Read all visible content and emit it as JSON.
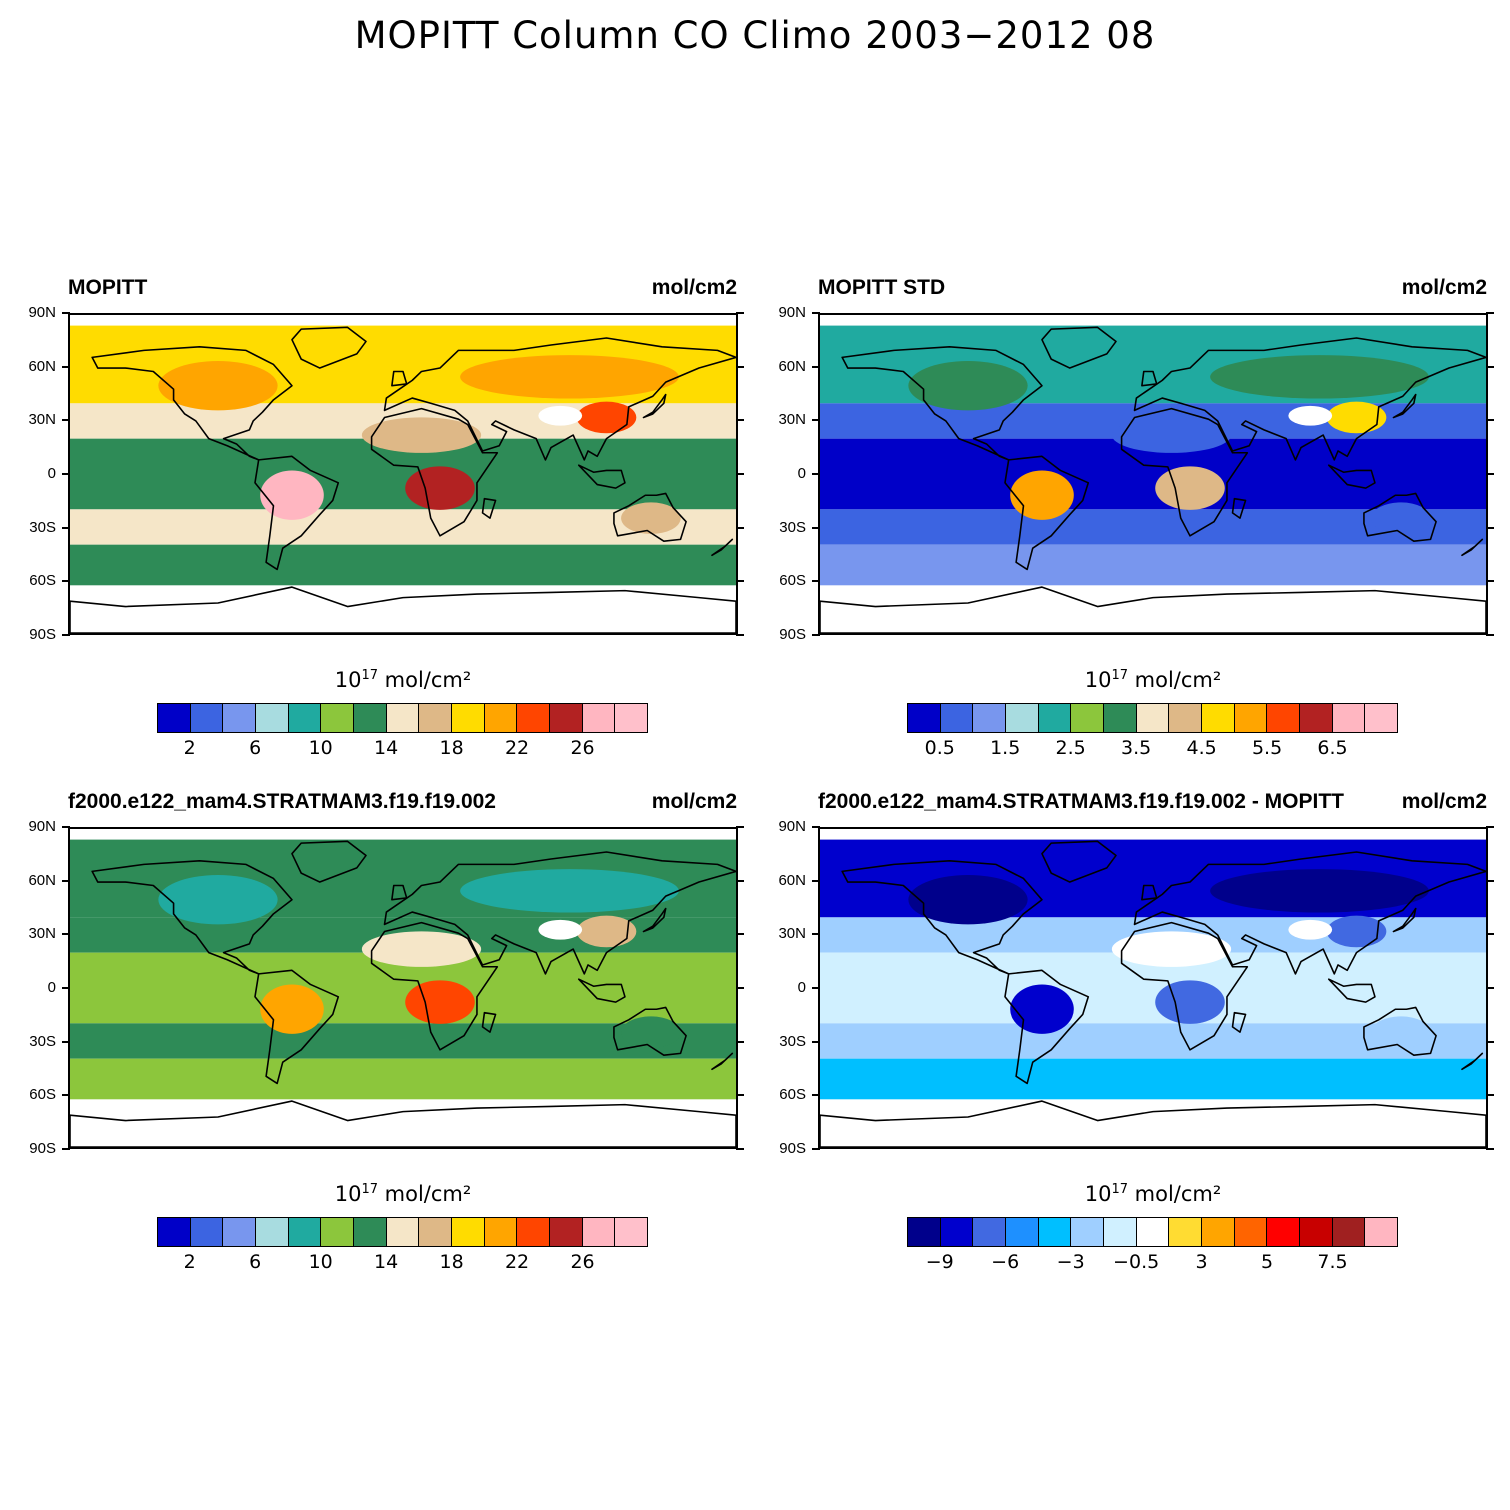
{
  "title": "MOPITT Column CO Climo 2003−2012 08",
  "lat_labels": [
    "90N",
    "60N",
    "30N",
    "0",
    "30S",
    "60S",
    "90S"
  ],
  "palettes": {
    "main": [
      "#0000c8",
      "#3c64e1",
      "#7896ee",
      "#a8dce0",
      "#20aaa0",
      "#8cc63c",
      "#2e8b57",
      "#f5e6c8",
      "#deb887",
      "#ffdc00",
      "#ffa500",
      "#ff4500",
      "#b22222",
      "#ffb6c1",
      "#ffc0cb"
    ],
    "diff": [
      "#00008b",
      "#0000cd",
      "#4169e1",
      "#1e90ff",
      "#00bfff",
      "#9fcfff",
      "#d0f0ff",
      "#ffffff",
      "#ffdc32",
      "#ffa500",
      "#ff6400",
      "#ff0000",
      "#c80000",
      "#a02020",
      "#ffb6c1"
    ]
  },
  "panels": [
    {
      "title": "MOPITT",
      "units": "mol/cm2",
      "colorbar_caption_base": "10",
      "colorbar_caption_exp": "17",
      "colorbar_caption_units": " mol/cm²",
      "palette": "main",
      "colorbar_labels": [
        "2",
        "6",
        "10",
        "14",
        "18",
        "22",
        "26"
      ],
      "regions": {
        "ocean_tropics": 6,
        "ocean_mid": 7,
        "ocean_south": 6,
        "north_band": 9,
        "north_land": 10,
        "amazon_core": 13,
        "africa_core": 12,
        "asia_core": 11,
        "sahara": 8,
        "australia": 8
      }
    },
    {
      "title": "MOPITT STD",
      "units": "mol/cm2",
      "colorbar_caption_base": "10",
      "colorbar_caption_exp": "17",
      "colorbar_caption_units": " mol/cm²",
      "palette": "main",
      "colorbar_labels": [
        "0.5",
        "1.5",
        "2.5",
        "3.5",
        "4.5",
        "5.5",
        "6.5"
      ],
      "regions": {
        "ocean_tropics": 0,
        "ocean_mid": 1,
        "ocean_south": 2,
        "north_band": 4,
        "north_land": 6,
        "amazon_core": 10,
        "africa_core": 8,
        "asia_core": 9,
        "sahara": 1,
        "australia": 1
      }
    },
    {
      "title": "f2000.e122_mam4.STRATMAM3.f19.f19.002",
      "units": "mol/cm2",
      "colorbar_caption_base": "10",
      "colorbar_caption_exp": "17",
      "colorbar_caption_units": " mol/cm²",
      "palette": "main",
      "colorbar_labels": [
        "2",
        "6",
        "10",
        "14",
        "18",
        "22",
        "26"
      ],
      "regions": {
        "ocean_tropics": 5,
        "ocean_mid": 6,
        "ocean_south": 5,
        "north_band": 6,
        "north_land": 4,
        "amazon_core": 10,
        "africa_core": 11,
        "asia_core": 8,
        "sahara": 7,
        "australia": 6
      }
    },
    {
      "title": "f2000.e122_mam4.STRATMAM3.f19.f19.002 - MOPITT",
      "units": "mol/cm2",
      "colorbar_caption_base": "10",
      "colorbar_caption_exp": "17",
      "colorbar_caption_units": " mol/cm²",
      "palette": "diff",
      "colorbar_labels": [
        "−9",
        "−6",
        "−3",
        "−0.5",
        "3",
        "5",
        "7.5"
      ],
      "regions": {
        "ocean_tropics": 6,
        "ocean_mid": 5,
        "ocean_south": 4,
        "north_band": 1,
        "north_land": 0,
        "amazon_core": 1,
        "africa_core": 2,
        "asia_core": 2,
        "sahara": 7,
        "australia": 5
      }
    }
  ]
}
